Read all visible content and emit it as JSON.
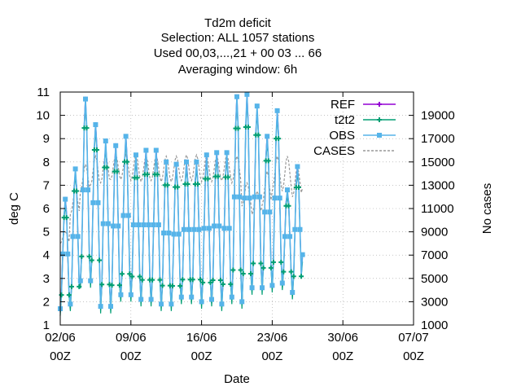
{
  "chart_data": {
    "type": "line",
    "title_lines": [
      "Td2m deficit",
      "Selection: ALL   1057 stations",
      "Used  00,03,...,21  + 00 03 ... 66",
      "Averaging window:  6h"
    ],
    "xlabel": "Date",
    "ylabel": "deg C",
    "y2label": "No cases",
    "x_ticks": [
      {
        "day": 0,
        "line1": "02/06",
        "line2": "00Z"
      },
      {
        "day": 7,
        "line1": "09/06",
        "line2": "00Z"
      },
      {
        "day": 14,
        "line1": "16/06",
        "line2": "00Z"
      },
      {
        "day": 21,
        "line1": "23/06",
        "line2": "00Z"
      },
      {
        "day": 28,
        "line1": "30/06",
        "line2": "00Z"
      },
      {
        "day": 35,
        "line1": "07/07",
        "line2": "00Z"
      }
    ],
    "xlim_days": [
      0,
      35
    ],
    "ylim": [
      1,
      11
    ],
    "y_ticks": [
      "1",
      "2",
      "3",
      "4",
      "5",
      "6",
      "7",
      "8",
      "9",
      "10",
      "11"
    ],
    "y2lim": [
      1000,
      21000
    ],
    "y2_ticks": [
      "1000",
      "3000",
      "5000",
      "7000",
      "9000",
      "11000",
      "13000",
      "15000",
      "17000",
      "19000"
    ],
    "grid": true,
    "legend_position": "top-right",
    "series": [
      {
        "name": "REF",
        "color": "#9400d3",
        "marker": "plus",
        "style": "solid"
      },
      {
        "name": "t2t2",
        "color": "#009e73",
        "marker": "plus",
        "style": "solid"
      },
      {
        "name": "OBS",
        "color": "#56b4e9",
        "marker": "square",
        "style": "solid"
      },
      {
        "name": "CASES",
        "color": "#999999",
        "marker": "none",
        "style": "dashed"
      }
    ],
    "obs_daily": [
      {
        "day": 0.0,
        "min": 1.7,
        "max": 6.4
      },
      {
        "day": 1.0,
        "min": 1.9,
        "max": 7.7
      },
      {
        "day": 2.0,
        "min": 2.9,
        "max": 10.7
      },
      {
        "day": 3.0,
        "min": 2.9,
        "max": 9.6
      },
      {
        "day": 4.0,
        "min": 1.8,
        "max": 8.9
      },
      {
        "day": 5.0,
        "min": 1.8,
        "max": 8.7
      },
      {
        "day": 6.0,
        "min": 2.3,
        "max": 9.1
      },
      {
        "day": 7.0,
        "min": 2.3,
        "max": 8.3
      },
      {
        "day": 8.0,
        "min": 2.1,
        "max": 8.5
      },
      {
        "day": 9.0,
        "min": 2.1,
        "max": 8.5
      },
      {
        "day": 10.0,
        "min": 1.9,
        "max": 8.0
      },
      {
        "day": 11.0,
        "min": 1.9,
        "max": 7.9
      },
      {
        "day": 12.0,
        "min": 2.2,
        "max": 8.0
      },
      {
        "day": 13.0,
        "min": 2.2,
        "max": 8.0
      },
      {
        "day": 14.0,
        "min": 2.0,
        "max": 8.3
      },
      {
        "day": 15.0,
        "min": 2.1,
        "max": 8.4
      },
      {
        "day": 16.0,
        "min": 1.9,
        "max": 8.4
      },
      {
        "day": 17.0,
        "min": 2.2,
        "max": 10.8
      },
      {
        "day": 18.0,
        "min": 2.0,
        "max": 10.9
      },
      {
        "day": 19.0,
        "min": 2.6,
        "max": 10.4
      },
      {
        "day": 20.0,
        "min": 2.6,
        "max": 9.1
      },
      {
        "day": 21.0,
        "min": 2.7,
        "max": 10.2
      },
      {
        "day": 22.0,
        "min": 2.8,
        "max": 6.8
      },
      {
        "day": 23.0,
        "min": 2.4,
        "max": 7.8
      }
    ],
    "cases_daily": [
      {
        "day": 0.0,
        "min": 8000,
        "max": 9000
      },
      {
        "day": 1.0,
        "min": 10500,
        "max": 12500
      },
      {
        "day": 2.0,
        "min": 12500,
        "max": 14800
      },
      {
        "day": 3.0,
        "min": 13000,
        "max": 15500
      },
      {
        "day": 4.0,
        "min": 13200,
        "max": 15600
      },
      {
        "day": 5.0,
        "min": 13500,
        "max": 15600
      },
      {
        "day": 6.0,
        "min": 13500,
        "max": 15600
      },
      {
        "day": 7.0,
        "min": 13400,
        "max": 15600
      },
      {
        "day": 8.0,
        "min": 13300,
        "max": 15500
      },
      {
        "day": 9.0,
        "min": 13400,
        "max": 15500
      },
      {
        "day": 10.0,
        "min": 13300,
        "max": 15500
      },
      {
        "day": 11.0,
        "min": 13300,
        "max": 15500
      },
      {
        "day": 12.0,
        "min": 13400,
        "max": 15600
      },
      {
        "day": 13.0,
        "min": 13400,
        "max": 15600
      },
      {
        "day": 14.0,
        "min": 13300,
        "max": 15500
      },
      {
        "day": 15.0,
        "min": 13300,
        "max": 15500
      },
      {
        "day": 16.0,
        "min": 13400,
        "max": 15600
      },
      {
        "day": 17.0,
        "min": 13200,
        "max": 15500
      },
      {
        "day": 18.0,
        "min": 11200,
        "max": 13200
      },
      {
        "day": 19.0,
        "min": 10500,
        "max": 12500
      },
      {
        "day": 20.0,
        "min": 11300,
        "max": 14200
      },
      {
        "day": 21.0,
        "min": 12500,
        "max": 15500
      },
      {
        "day": 22.0,
        "min": 12500,
        "max": 15500
      },
      {
        "day": 23.0,
        "min": 12000,
        "max": 14500
      }
    ]
  }
}
